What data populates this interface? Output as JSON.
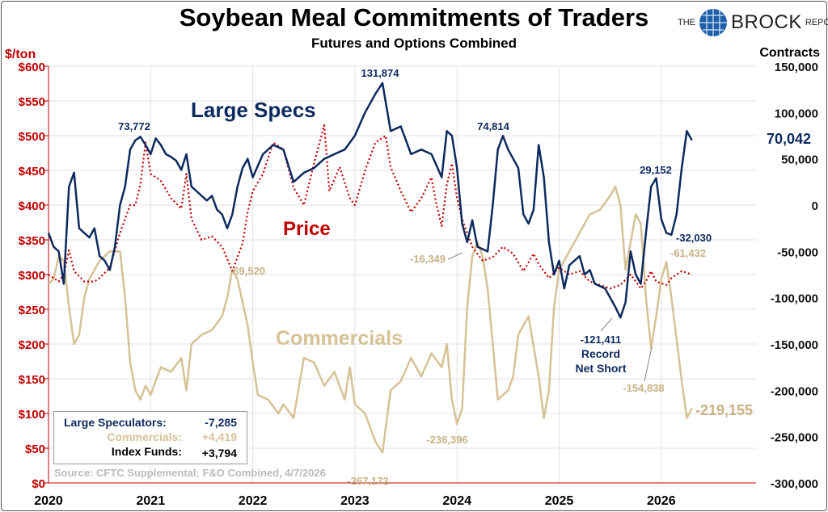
{
  "title": "Soybean Meal Commitments of Traders",
  "subtitle": "Futures and Options Combined",
  "logo": {
    "the": "THE",
    "brand": "BROCK",
    "report": "REPORT"
  },
  "colors": {
    "large_specs": "#0d2a5e",
    "price": "#c00000",
    "commercials": "#d6c295",
    "grid": "#e2e2e2"
  },
  "legend_box": {
    "large_specs_label": "Large Speculators:",
    "large_specs_value": "-7,285",
    "commercials_label": "Commercials:",
    "commercials_value": "+4,419",
    "index_label": "Index Funds:",
    "index_value": "+3,794"
  },
  "source": "Source: CFTC Supplemental;  F&O Combined, 4/7/2026",
  "chart_data": {
    "type": "line",
    "title": "Soybean Meal Commitments of Traders",
    "subtitle": "Futures and Options Combined",
    "xlim": [
      2020,
      2026.5
    ],
    "x_ticks": [
      "2020",
      "2021",
      "2022",
      "2023",
      "2024",
      "2025",
      "2026"
    ],
    "y_left": {
      "label": "$/ton",
      "range": [
        0,
        600
      ],
      "ticks": [
        "$0",
        "$50",
        "$100",
        "$150",
        "$200",
        "$250",
        "$300",
        "$350",
        "$400",
        "$450",
        "$500",
        "$550",
        "$600"
      ]
    },
    "y_right": {
      "label": "Contracts",
      "range": [
        -300000,
        150000
      ],
      "ticks": [
        "-300,000",
        "-250,000",
        "-200,000",
        "-150,000",
        "-100,000",
        "-50,000",
        "0",
        "50,000",
        "100,000",
        "150,000"
      ]
    },
    "grid": true,
    "series": [
      {
        "name": "Large Specs",
        "axis": "right",
        "style": "solid",
        "color": "#0d2a5e",
        "points": [
          [
            2020.0,
            -30000
          ],
          [
            2020.05,
            -45000
          ],
          [
            2020.1,
            -50000
          ],
          [
            2020.15,
            -85000
          ],
          [
            2020.2,
            20000
          ],
          [
            2020.25,
            35000
          ],
          [
            2020.3,
            -25000
          ],
          [
            2020.35,
            -30000
          ],
          [
            2020.4,
            -35000
          ],
          [
            2020.45,
            -25000
          ],
          [
            2020.5,
            -55000
          ],
          [
            2020.55,
            -60000
          ],
          [
            2020.6,
            -70000
          ],
          [
            2020.65,
            -45000
          ],
          [
            2020.7,
            0
          ],
          [
            2020.75,
            20000
          ],
          [
            2020.8,
            60000
          ],
          [
            2020.85,
            70000
          ],
          [
            2020.9,
            73772
          ],
          [
            2020.95,
            65000
          ],
          [
            2021.0,
            55000
          ],
          [
            2021.05,
            72000
          ],
          [
            2021.1,
            65000
          ],
          [
            2021.15,
            55000
          ],
          [
            2021.2,
            52000
          ],
          [
            2021.25,
            48000
          ],
          [
            2021.3,
            38000
          ],
          [
            2021.35,
            55000
          ],
          [
            2021.4,
            20000
          ],
          [
            2021.5,
            10000
          ],
          [
            2021.55,
            5000
          ],
          [
            2021.6,
            10000
          ],
          [
            2021.65,
            -5000
          ],
          [
            2021.7,
            -10000
          ],
          [
            2021.75,
            -25000
          ],
          [
            2021.8,
            -10000
          ],
          [
            2021.85,
            20000
          ],
          [
            2021.9,
            40000
          ],
          [
            2021.95,
            50000
          ],
          [
            2022.0,
            30000
          ],
          [
            2022.1,
            55000
          ],
          [
            2022.2,
            65000
          ],
          [
            2022.3,
            60000
          ],
          [
            2022.4,
            25000
          ],
          [
            2022.5,
            35000
          ],
          [
            2022.6,
            40000
          ],
          [
            2022.7,
            50000
          ],
          [
            2022.8,
            55000
          ],
          [
            2022.9,
            60000
          ],
          [
            2023.0,
            75000
          ],
          [
            2023.1,
            100000
          ],
          [
            2023.2,
            120000
          ],
          [
            2023.27,
            131874
          ],
          [
            2023.35,
            80000
          ],
          [
            2023.45,
            85000
          ],
          [
            2023.55,
            55000
          ],
          [
            2023.65,
            60000
          ],
          [
            2023.75,
            55000
          ],
          [
            2023.85,
            30000
          ],
          [
            2023.9,
            80000
          ],
          [
            2023.95,
            75000
          ],
          [
            2024.0,
            40000
          ],
          [
            2024.05,
            -20000
          ],
          [
            2024.1,
            -40000
          ],
          [
            2024.15,
            -16349
          ],
          [
            2024.2,
            -45000
          ],
          [
            2024.3,
            -50000
          ],
          [
            2024.35,
            0
          ],
          [
            2024.4,
            60000
          ],
          [
            2024.45,
            74814
          ],
          [
            2024.5,
            60000
          ],
          [
            2024.6,
            40000
          ],
          [
            2024.65,
            -10000
          ],
          [
            2024.7,
            -20000
          ],
          [
            2024.75,
            -5000
          ],
          [
            2024.8,
            65000
          ],
          [
            2024.85,
            30000
          ],
          [
            2024.9,
            -40000
          ],
          [
            2024.95,
            -75000
          ],
          [
            2025.0,
            -60000
          ],
          [
            2025.05,
            -90000
          ],
          [
            2025.1,
            -65000
          ],
          [
            2025.2,
            -55000
          ],
          [
            2025.25,
            -75000
          ],
          [
            2025.3,
            -70000
          ],
          [
            2025.35,
            -85000
          ],
          [
            2025.45,
            -90000
          ],
          [
            2025.55,
            -110000
          ],
          [
            2025.6,
            -121411
          ],
          [
            2025.65,
            -105000
          ],
          [
            2025.7,
            -50000
          ],
          [
            2025.75,
            -75000
          ],
          [
            2025.8,
            -85000
          ],
          [
            2025.85,
            -30000
          ],
          [
            2025.9,
            20000
          ],
          [
            2025.95,
            29152
          ],
          [
            2026.0,
            -15000
          ],
          [
            2026.05,
            -30000
          ],
          [
            2026.1,
            -32030
          ],
          [
            2026.15,
            -10000
          ],
          [
            2026.2,
            40000
          ],
          [
            2026.25,
            80000
          ],
          [
            2026.3,
            70042
          ]
        ]
      },
      {
        "name": "Price",
        "axis": "left",
        "style": "dotted",
        "color": "#c00000",
        "points": [
          [
            2020.0,
            300
          ],
          [
            2020.05,
            295
          ],
          [
            2020.1,
            290
          ],
          [
            2020.15,
            300
          ],
          [
            2020.2,
            335
          ],
          [
            2020.25,
            305
          ],
          [
            2020.35,
            290
          ],
          [
            2020.45,
            290
          ],
          [
            2020.5,
            295
          ],
          [
            2020.6,
            310
          ],
          [
            2020.7,
            360
          ],
          [
            2020.8,
            400
          ],
          [
            2020.85,
            400
          ],
          [
            2020.9,
            430
          ],
          [
            2020.95,
            490
          ],
          [
            2021.0,
            445
          ],
          [
            2021.1,
            435
          ],
          [
            2021.2,
            410
          ],
          [
            2021.3,
            395
          ],
          [
            2021.35,
            445
          ],
          [
            2021.4,
            380
          ],
          [
            2021.5,
            350
          ],
          [
            2021.6,
            355
          ],
          [
            2021.7,
            340
          ],
          [
            2021.8,
            305
          ],
          [
            2021.9,
            345
          ],
          [
            2021.95,
            390
          ],
          [
            2022.0,
            420
          ],
          [
            2022.1,
            445
          ],
          [
            2022.2,
            490
          ],
          [
            2022.3,
            480
          ],
          [
            2022.4,
            425
          ],
          [
            2022.5,
            400
          ],
          [
            2022.6,
            460
          ],
          [
            2022.7,
            515
          ],
          [
            2022.75,
            420
          ],
          [
            2022.85,
            455
          ],
          [
            2022.95,
            410
          ],
          [
            2023.0,
            400
          ],
          [
            2023.1,
            450
          ],
          [
            2023.2,
            490
          ],
          [
            2023.3,
            500
          ],
          [
            2023.35,
            455
          ],
          [
            2023.45,
            420
          ],
          [
            2023.55,
            390
          ],
          [
            2023.65,
            410
          ],
          [
            2023.75,
            440
          ],
          [
            2023.8,
            400
          ],
          [
            2023.85,
            370
          ],
          [
            2023.9,
            430
          ],
          [
            2023.95,
            460
          ],
          [
            2024.0,
            410
          ],
          [
            2024.05,
            380
          ],
          [
            2024.15,
            340
          ],
          [
            2024.25,
            320
          ],
          [
            2024.35,
            325
          ],
          [
            2024.45,
            340
          ],
          [
            2024.55,
            330
          ],
          [
            2024.65,
            305
          ],
          [
            2024.75,
            330
          ],
          [
            2024.8,
            315
          ],
          [
            2024.9,
            295
          ],
          [
            2025.0,
            310
          ],
          [
            2025.1,
            300
          ],
          [
            2025.2,
            305
          ],
          [
            2025.3,
            290
          ],
          [
            2025.5,
            280
          ],
          [
            2025.6,
            285
          ],
          [
            2025.7,
            300
          ],
          [
            2025.8,
            280
          ],
          [
            2025.85,
            290
          ],
          [
            2025.9,
            305
          ],
          [
            2025.95,
            290
          ],
          [
            2026.05,
            285
          ],
          [
            2026.1,
            295
          ],
          [
            2026.2,
            305
          ],
          [
            2026.3,
            300
          ]
        ]
      },
      {
        "name": "Commercials",
        "axis": "right",
        "style": "solid",
        "color": "#d6c295",
        "points": [
          [
            2020.0,
            -85000
          ],
          [
            2020.05,
            -80000
          ],
          [
            2020.1,
            -55000
          ],
          [
            2020.15,
            -60000
          ],
          [
            2020.2,
            -110000
          ],
          [
            2020.25,
            -150000
          ],
          [
            2020.3,
            -140000
          ],
          [
            2020.35,
            -100000
          ],
          [
            2020.4,
            -80000
          ],
          [
            2020.5,
            -60000
          ],
          [
            2020.55,
            -55000
          ],
          [
            2020.6,
            -50000
          ],
          [
            2020.7,
            -50000
          ],
          [
            2020.75,
            -100000
          ],
          [
            2020.8,
            -170000
          ],
          [
            2020.85,
            -200000
          ],
          [
            2020.9,
            -210000
          ],
          [
            2020.95,
            -195000
          ],
          [
            2021.0,
            -205000
          ],
          [
            2021.1,
            -175000
          ],
          [
            2021.2,
            -180000
          ],
          [
            2021.3,
            -165000
          ],
          [
            2021.35,
            -200000
          ],
          [
            2021.4,
            -150000
          ],
          [
            2021.5,
            -140000
          ],
          [
            2021.6,
            -135000
          ],
          [
            2021.7,
            -120000
          ],
          [
            2021.75,
            -100000
          ],
          [
            2021.8,
            -69520
          ],
          [
            2021.85,
            -80000
          ],
          [
            2021.95,
            -130000
          ],
          [
            2022.0,
            -170000
          ],
          [
            2022.05,
            -205000
          ],
          [
            2022.15,
            -210000
          ],
          [
            2022.25,
            -225000
          ],
          [
            2022.3,
            -215000
          ],
          [
            2022.4,
            -230000
          ],
          [
            2022.5,
            -165000
          ],
          [
            2022.6,
            -170000
          ],
          [
            2022.7,
            -195000
          ],
          [
            2022.8,
            -180000
          ],
          [
            2022.9,
            -210000
          ],
          [
            2022.95,
            -175000
          ],
          [
            2023.0,
            -215000
          ],
          [
            2023.1,
            -225000
          ],
          [
            2023.2,
            -255000
          ],
          [
            2023.27,
            -267172
          ],
          [
            2023.35,
            -200000
          ],
          [
            2023.45,
            -190000
          ],
          [
            2023.55,
            -165000
          ],
          [
            2023.65,
            -185000
          ],
          [
            2023.75,
            -160000
          ],
          [
            2023.85,
            -175000
          ],
          [
            2023.9,
            -150000
          ],
          [
            2023.95,
            -210000
          ],
          [
            2024.0,
            -236396
          ],
          [
            2024.05,
            -220000
          ],
          [
            2024.1,
            -110000
          ],
          [
            2024.15,
            -55000
          ],
          [
            2024.2,
            -40000
          ],
          [
            2024.25,
            -55000
          ],
          [
            2024.3,
            -90000
          ],
          [
            2024.4,
            -210000
          ],
          [
            2024.5,
            -200000
          ],
          [
            2024.55,
            -185000
          ],
          [
            2024.6,
            -140000
          ],
          [
            2024.7,
            -120000
          ],
          [
            2024.8,
            -185000
          ],
          [
            2024.85,
            -230000
          ],
          [
            2024.9,
            -200000
          ],
          [
            2024.95,
            -110000
          ],
          [
            2025.0,
            -70000
          ],
          [
            2025.1,
            -50000
          ],
          [
            2025.2,
            -30000
          ],
          [
            2025.3,
            -10000
          ],
          [
            2025.4,
            -5000
          ],
          [
            2025.5,
            10000
          ],
          [
            2025.55,
            20000
          ],
          [
            2025.6,
            0
          ],
          [
            2025.65,
            -70000
          ],
          [
            2025.7,
            -40000
          ],
          [
            2025.75,
            -10000
          ],
          [
            2025.8,
            -20000
          ],
          [
            2025.85,
            -100000
          ],
          [
            2025.9,
            -154838
          ],
          [
            2025.95,
            -120000
          ],
          [
            2026.0,
            -80000
          ],
          [
            2026.05,
            -61432
          ],
          [
            2026.1,
            -100000
          ],
          [
            2026.2,
            -190000
          ],
          [
            2026.25,
            -230000
          ],
          [
            2026.3,
            -219155
          ]
        ]
      }
    ],
    "series_labels": [
      {
        "text": "Large Specs",
        "color": "#0d2a5e"
      },
      {
        "text": "Price",
        "color": "#c00000"
      },
      {
        "text": "Commercials",
        "color": "#d6c295"
      }
    ],
    "annotations": [
      "73,772",
      "131,874",
      "74,814",
      "29,152",
      "70,042",
      "-32,030",
      "-121,411",
      "Record",
      "Net Short",
      "-16,349",
      "-69,520",
      "-61,432",
      "-154,838",
      "-219,155",
      "-236,396",
      "-267,172"
    ]
  }
}
